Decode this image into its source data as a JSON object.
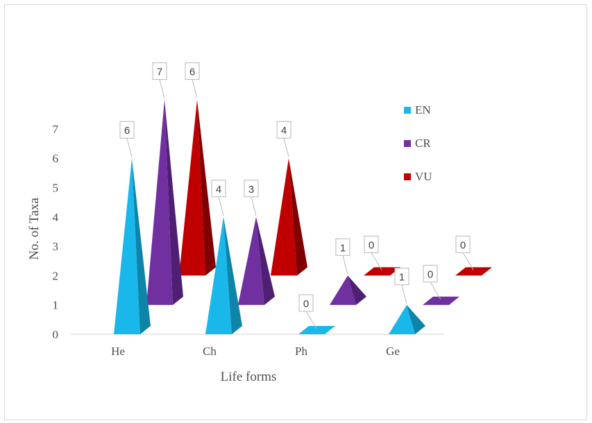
{
  "chart_data": {
    "type": "bar",
    "style": "3d-pyramid",
    "xlabel": "Life forms",
    "ylabel": "No. of Taxa",
    "categories": [
      "He",
      "Ch",
      "Ph",
      "Ge"
    ],
    "series": [
      {
        "name": "EN",
        "values": [
          6,
          4,
          0,
          1
        ],
        "color": "#1ab7ea",
        "side_color": "#0e84a8"
      },
      {
        "name": "CR",
        "values": [
          7,
          3,
          1,
          0
        ],
        "color": "#7030a0",
        "side_color": "#4e1f73"
      },
      {
        "name": "VU",
        "values": [
          6,
          4,
          0,
          0
        ],
        "color": "#c00000",
        "side_color": "#800000"
      }
    ],
    "yticks": [
      "0",
      "1",
      "2",
      "3",
      "4",
      "5",
      "6",
      "7"
    ],
    "ylim": [
      0,
      7
    ],
    "grid": false,
    "legend_position": "right"
  }
}
